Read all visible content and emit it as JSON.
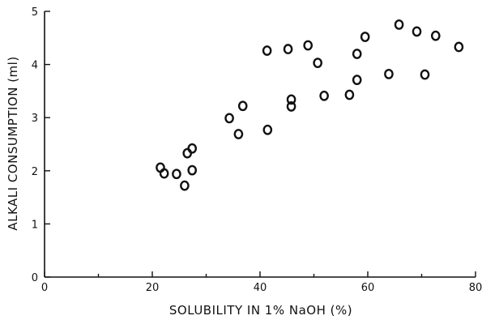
{
  "chart_data": {
    "type": "scatter",
    "xlabel": "SOLUBILITY IN 1% NaOH (%)",
    "ylabel": "ALKALI CONSUMPTION (ml)",
    "xlim": [
      0,
      80
    ],
    "ylim": [
      0,
      5
    ],
    "xticks": [
      0,
      20,
      40,
      60,
      80
    ],
    "xtick_labels": [
      "0",
      "20",
      "40",
      "60",
      "80"
    ],
    "yticks": [
      0,
      1,
      2,
      3,
      4,
      5
    ],
    "ytick_labels": [
      "0",
      "1",
      "2",
      "3",
      "4",
      "5"
    ],
    "grid": false,
    "marker": "open-circle",
    "points": [
      {
        "x": 21.5,
        "y": 2.06
      },
      {
        "x": 22.2,
        "y": 1.95
      },
      {
        "x": 24.5,
        "y": 1.94
      },
      {
        "x": 26.0,
        "y": 1.72
      },
      {
        "x": 26.5,
        "y": 2.33
      },
      {
        "x": 27.4,
        "y": 2.42
      },
      {
        "x": 27.4,
        "y": 2.01
      },
      {
        "x": 34.3,
        "y": 2.99
      },
      {
        "x": 36.0,
        "y": 2.69
      },
      {
        "x": 36.8,
        "y": 3.22
      },
      {
        "x": 41.3,
        "y": 4.26
      },
      {
        "x": 41.4,
        "y": 2.77
      },
      {
        "x": 45.2,
        "y": 4.29
      },
      {
        "x": 45.8,
        "y": 3.34
      },
      {
        "x": 45.8,
        "y": 3.21
      },
      {
        "x": 48.9,
        "y": 4.36
      },
      {
        "x": 50.7,
        "y": 4.03
      },
      {
        "x": 51.9,
        "y": 3.41
      },
      {
        "x": 56.6,
        "y": 3.43
      },
      {
        "x": 58.0,
        "y": 3.71
      },
      {
        "x": 58.0,
        "y": 4.2
      },
      {
        "x": 59.5,
        "y": 4.52
      },
      {
        "x": 63.9,
        "y": 3.82
      },
      {
        "x": 65.8,
        "y": 4.75
      },
      {
        "x": 69.1,
        "y": 4.62
      },
      {
        "x": 70.6,
        "y": 3.81
      },
      {
        "x": 72.6,
        "y": 4.54
      },
      {
        "x": 76.9,
        "y": 4.33
      }
    ]
  }
}
